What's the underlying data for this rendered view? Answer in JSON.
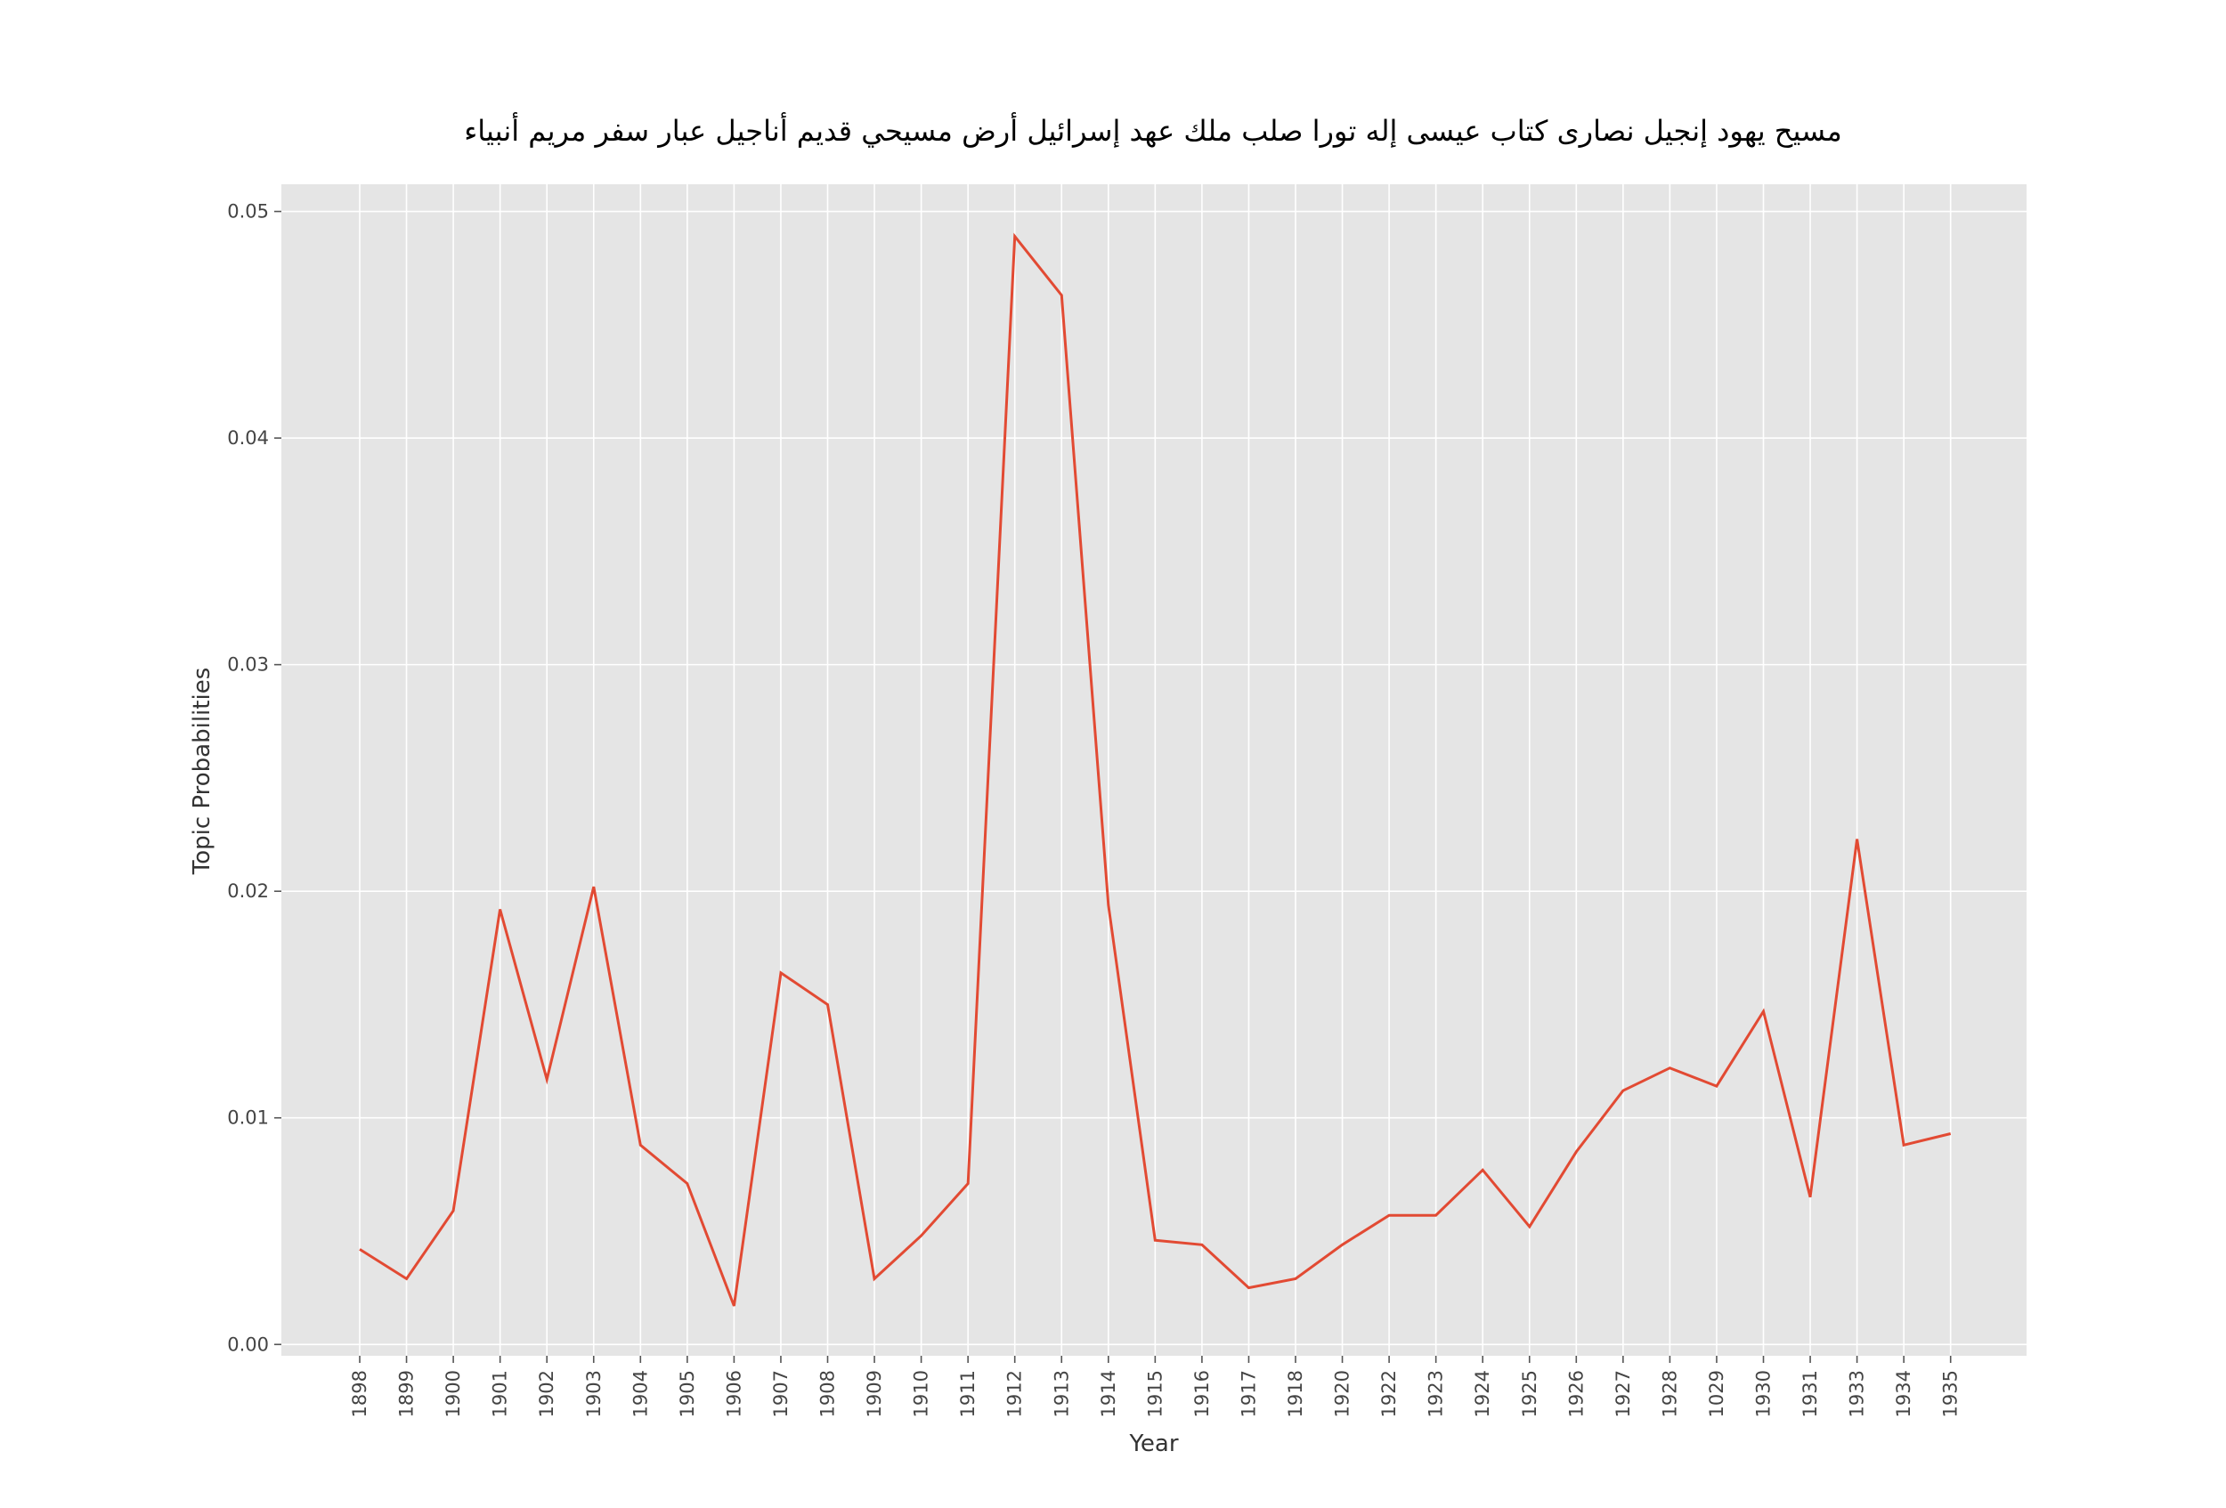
{
  "chart_data": {
    "type": "line",
    "title": "مسيح يهود إنجيل نصارى كتاب عيسى إله تورا صلب ملك عهد إسرائيل أرض مسيحي قديم أناجيل عبار سفر مريم أنبياء",
    "xlabel": "Year",
    "ylabel": "Topic Probabilities",
    "categories": [
      "1898",
      "1899",
      "1900",
      "1901",
      "1902",
      "1903",
      "1904",
      "1905",
      "1906",
      "1907",
      "1908",
      "1909",
      "1910",
      "1911",
      "1912",
      "1913",
      "1914",
      "1915",
      "1916",
      "1917",
      "1918",
      "1920",
      "1922",
      "1923",
      "1924",
      "1925",
      "1926",
      "1927",
      "1928",
      "1029",
      "1930",
      "1931",
      "1933",
      "1934",
      "1935"
    ],
    "series": [
      {
        "values": [
          0.0042,
          0.0029,
          0.0059,
          0.0192,
          0.0117,
          0.0202,
          0.0088,
          0.0071,
          0.0017,
          0.0164,
          0.015,
          0.0029,
          0.0048,
          0.0071,
          0.0489,
          0.0463,
          0.0194,
          0.0046,
          0.0044,
          0.0025,
          0.0029,
          0.0044,
          0.0057,
          0.0057,
          0.0077,
          0.0052,
          0.0085,
          0.0112,
          0.0122,
          0.0114,
          0.0147,
          0.0065,
          0.0223,
          0.0088,
          0.0093
        ],
        "color": "#e24a33"
      }
    ],
    "yticks": [
      "0.00",
      "0.01",
      "0.02",
      "0.03",
      "0.04",
      "0.05"
    ],
    "ylim": [
      -0.0005,
      0.0512
    ],
    "grid": true,
    "background": "#e5e5e5",
    "style": "ggplot"
  }
}
